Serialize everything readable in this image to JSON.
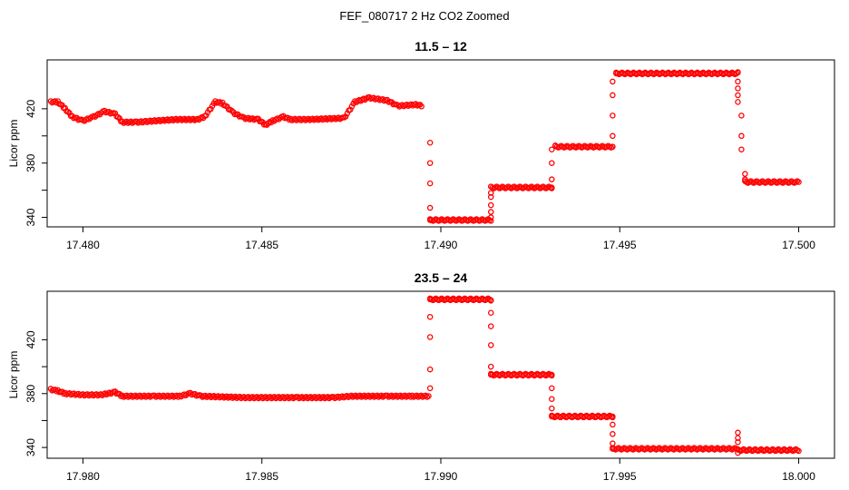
{
  "figure": {
    "title": "FEF_080717  2 Hz CO2 Zoomed"
  },
  "chart_data": [
    {
      "type": "scatter",
      "title": "11.5 – 12",
      "xlabel": "",
      "ylabel": "Licor ppm",
      "xlim": [
        17.479,
        17.501
      ],
      "ylim": [
        333,
        456
      ],
      "x_ticks": [
        "17.480",
        "17.485",
        "17.490",
        "17.495",
        "17.500"
      ],
      "x_tick_values": [
        17.48,
        17.485,
        17.49,
        17.495,
        17.5
      ],
      "y_ticks": [
        "340",
        "380",
        "420"
      ],
      "y_tick_values": [
        340,
        380,
        420
      ],
      "marker_color": "#ff0000",
      "marker": "open-circle",
      "grid": false,
      "trace": [
        [
          17.4791,
          425
        ],
        [
          17.4793,
          425
        ],
        [
          17.4795,
          420
        ],
        [
          17.4797,
          414
        ],
        [
          17.48,
          411
        ],
        [
          17.4803,
          414
        ],
        [
          17.4806,
          418
        ],
        [
          17.4809,
          416
        ],
        [
          17.4811,
          410
        ],
        [
          17.4815,
          410
        ],
        [
          17.482,
          411
        ],
        [
          17.4826,
          412
        ],
        [
          17.4832,
          412
        ],
        [
          17.4834,
          414
        ],
        [
          17.4837,
          425
        ],
        [
          17.4839,
          424
        ],
        [
          17.4842,
          417
        ],
        [
          17.4845,
          413
        ],
        [
          17.4849,
          412
        ],
        [
          17.4851,
          408
        ],
        [
          17.4853,
          411
        ],
        [
          17.4856,
          414
        ],
        [
          17.4858,
          412
        ],
        [
          17.4863,
          412
        ],
        [
          17.4873,
          413
        ],
        [
          17.4876,
          425
        ],
        [
          17.488,
          428
        ],
        [
          17.4885,
          426
        ],
        [
          17.4888,
          422
        ],
        [
          17.4893,
          423
        ],
        [
          17.4895,
          422
        ]
      ],
      "step_points": [
        [
          17.4897,
          395
        ],
        [
          17.4897,
          380
        ],
        [
          17.4897,
          365
        ],
        [
          17.4897,
          347
        ],
        [
          17.4897,
          338
        ],
        [
          17.4914,
          340
        ],
        [
          17.4914,
          344
        ],
        [
          17.4914,
          349
        ],
        [
          17.4914,
          355
        ],
        [
          17.4914,
          358
        ],
        [
          17.4931,
          362
        ],
        [
          17.4931,
          368
        ],
        [
          17.4931,
          380
        ],
        [
          17.4931,
          390
        ],
        [
          17.4932,
          393
        ],
        [
          17.4948,
          392
        ],
        [
          17.4948,
          400
        ],
        [
          17.4948,
          415
        ],
        [
          17.4948,
          430
        ],
        [
          17.4948,
          440
        ],
        [
          17.4949,
          446
        ],
        [
          17.4983,
          447
        ],
        [
          17.4983,
          440
        ],
        [
          17.4983,
          435
        ],
        [
          17.4983,
          430
        ],
        [
          17.4983,
          425
        ],
        [
          17.4984,
          415
        ],
        [
          17.4984,
          400
        ],
        [
          17.4984,
          390
        ],
        [
          17.4985,
          372
        ],
        [
          17.4985,
          368
        ]
      ],
      "plateaus": [
        {
          "x_start": 17.4897,
          "x_end": 17.4914,
          "y": 338
        },
        {
          "x_start": 17.4914,
          "x_end": 17.4931,
          "y": 362
        },
        {
          "x_start": 17.4932,
          "x_end": 17.4948,
          "y": 392
        },
        {
          "x_start": 17.4949,
          "x_end": 17.4983,
          "y": 446
        },
        {
          "x_start": 17.4985,
          "x_end": 17.5,
          "y": 366
        }
      ]
    },
    {
      "type": "scatter",
      "title": "23.5 – 24",
      "xlabel": "",
      "ylabel": "Licor ppm",
      "xlim": [
        17.979,
        18.001
      ],
      "ylim": [
        332,
        456
      ],
      "x_ticks": [
        "17.980",
        "17.985",
        "17.990",
        "17.995",
        "18.000"
      ],
      "x_tick_values": [
        17.98,
        17.985,
        17.99,
        17.995,
        18.0
      ],
      "y_ticks": [
        "340",
        "380",
        "420"
      ],
      "y_tick_values": [
        340,
        380,
        420
      ],
      "marker_color": "#ff0000",
      "marker": "open-circle",
      "grid": false,
      "trace": [
        [
          17.9791,
          383
        ],
        [
          17.9793,
          382
        ],
        [
          17.9795,
          380
        ],
        [
          17.98,
          379
        ],
        [
          17.9805,
          379
        ],
        [
          17.9809,
          381
        ],
        [
          17.9811,
          378
        ],
        [
          17.982,
          378
        ],
        [
          17.9827,
          378
        ],
        [
          17.983,
          380
        ],
        [
          17.9833,
          378
        ],
        [
          17.9845,
          377
        ],
        [
          17.986,
          377
        ],
        [
          17.987,
          377
        ],
        [
          17.9875,
          378
        ],
        [
          17.9885,
          378
        ],
        [
          17.9892,
          378
        ],
        [
          17.9897,
          378
        ]
      ],
      "step_points": [
        [
          17.9897,
          384
        ],
        [
          17.9897,
          398
        ],
        [
          17.9897,
          422
        ],
        [
          17.9897,
          437
        ],
        [
          17.9897,
          450
        ],
        [
          17.9914,
          449
        ],
        [
          17.9914,
          440
        ],
        [
          17.9914,
          430
        ],
        [
          17.9914,
          416
        ],
        [
          17.9914,
          400
        ],
        [
          17.9914,
          394
        ],
        [
          17.9931,
          394
        ],
        [
          17.9931,
          384
        ],
        [
          17.9931,
          376
        ],
        [
          17.9931,
          369
        ],
        [
          17.9931,
          363
        ],
        [
          17.9948,
          363
        ],
        [
          17.9948,
          357
        ],
        [
          17.9948,
          350
        ],
        [
          17.9948,
          343
        ],
        [
          17.9948,
          339
        ],
        [
          17.9983,
          351
        ],
        [
          17.9983,
          347
        ],
        [
          17.9983,
          336
        ],
        [
          17.9983,
          344
        ]
      ],
      "plateaus": [
        {
          "x_start": 17.9897,
          "x_end": 17.9914,
          "y": 450
        },
        {
          "x_start": 17.9914,
          "x_end": 17.9931,
          "y": 394
        },
        {
          "x_start": 17.9931,
          "x_end": 17.9948,
          "y": 363
        },
        {
          "x_start": 17.9948,
          "x_end": 17.9983,
          "y": 339
        },
        {
          "x_start": 17.9983,
          "x_end": 18.0,
          "y": 338
        }
      ]
    }
  ]
}
